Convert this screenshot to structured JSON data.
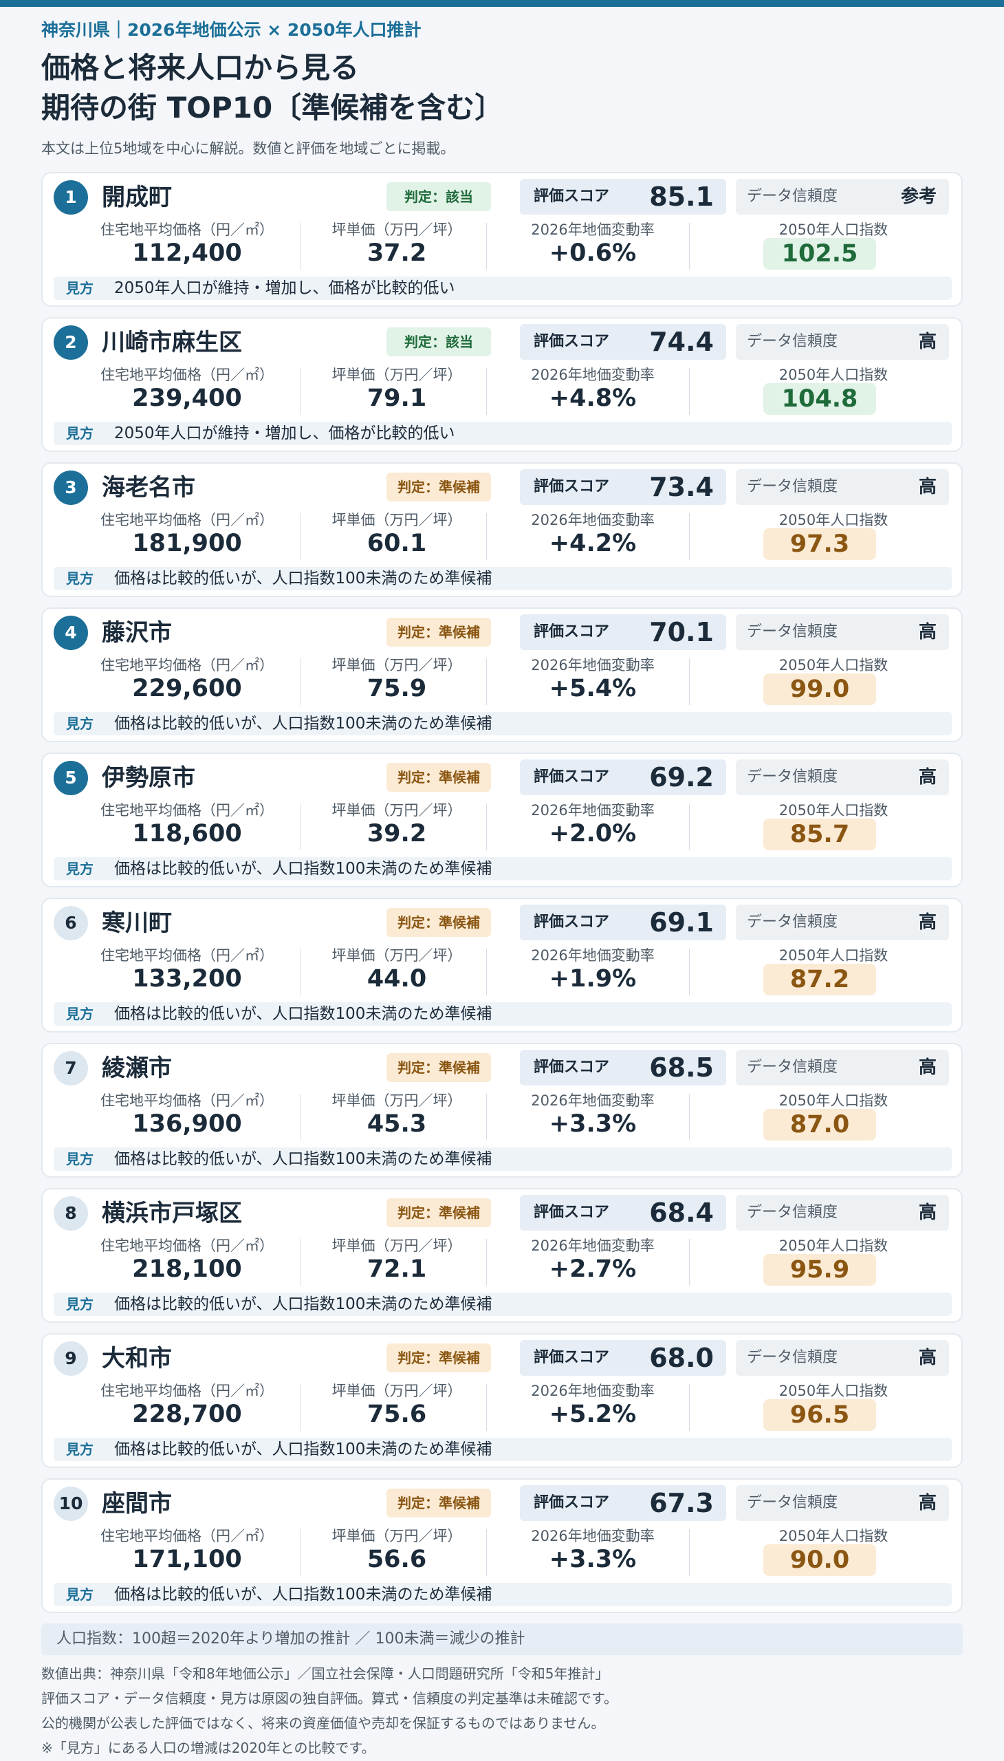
{
  "header": {
    "eyebrow": "神奈川県｜2026年地価公示 × 2050年人口推計",
    "title_line1": "価格と将来人口から見る",
    "title_line2": "期待の街 TOP10〔準候補を含む〕",
    "lede": "本文は上位5地域を中心に解説。数値と評価を地域ごとに掲載。"
  },
  "labels": {
    "score": "評価スコア",
    "trust": "データ信頼度",
    "price": "住宅地平均価格（円／㎡）",
    "tsubo": "坪単価（万円／坪）",
    "change": "2026年地価変動率",
    "pop": "2050年人口指数",
    "view": "見方"
  },
  "colors": {
    "accent": "#1b6f98",
    "match_green": "#1f6b3a",
    "candidate_orange": "#8a5612"
  },
  "cards": [
    {
      "rank": "1",
      "name": "開成町",
      "judge": "判定：該当",
      "judge_kind": "match",
      "score": "85.1",
      "trust": "参考",
      "price": "112,400",
      "tsubo": "37.2",
      "change": "+0.6%",
      "pop": "102.5",
      "view": "2050年人口が維持・増加し、価格が比較的低い"
    },
    {
      "rank": "2",
      "name": "川崎市麻生区",
      "judge": "判定：該当",
      "judge_kind": "match",
      "score": "74.4",
      "trust": "高",
      "price": "239,400",
      "tsubo": "79.1",
      "change": "+4.8%",
      "pop": "104.8",
      "view": "2050年人口が維持・増加し、価格が比較的低い"
    },
    {
      "rank": "3",
      "name": "海老名市",
      "judge": "判定：準候補",
      "judge_kind": "cand",
      "score": "73.4",
      "trust": "高",
      "price": "181,900",
      "tsubo": "60.1",
      "change": "+4.2%",
      "pop": "97.3",
      "view": "価格は比較的低いが、人口指数100未満のため準候補"
    },
    {
      "rank": "4",
      "name": "藤沢市",
      "judge": "判定：準候補",
      "judge_kind": "cand",
      "score": "70.1",
      "trust": "高",
      "price": "229,600",
      "tsubo": "75.9",
      "change": "+5.4%",
      "pop": "99.0",
      "view": "価格は比較的低いが、人口指数100未満のため準候補"
    },
    {
      "rank": "5",
      "name": "伊勢原市",
      "judge": "判定：準候補",
      "judge_kind": "cand",
      "score": "69.2",
      "trust": "高",
      "price": "118,600",
      "tsubo": "39.2",
      "change": "+2.0%",
      "pop": "85.7",
      "view": "価格は比較的低いが、人口指数100未満のため準候補"
    },
    {
      "rank": "6",
      "name": "寒川町",
      "judge": "判定：準候補",
      "judge_kind": "cand",
      "score": "69.1",
      "trust": "高",
      "price": "133,200",
      "tsubo": "44.0",
      "change": "+1.9%",
      "pop": "87.2",
      "view": "価格は比較的低いが、人口指数100未満のため準候補"
    },
    {
      "rank": "7",
      "name": "綾瀬市",
      "judge": "判定：準候補",
      "judge_kind": "cand",
      "score": "68.5",
      "trust": "高",
      "price": "136,900",
      "tsubo": "45.3",
      "change": "+3.3%",
      "pop": "87.0",
      "view": "価格は比較的低いが、人口指数100未満のため準候補"
    },
    {
      "rank": "8",
      "name": "横浜市戸塚区",
      "judge": "判定：準候補",
      "judge_kind": "cand",
      "score": "68.4",
      "trust": "高",
      "price": "218,100",
      "tsubo": "72.1",
      "change": "+2.7%",
      "pop": "95.9",
      "view": "価格は比較的低いが、人口指数100未満のため準候補"
    },
    {
      "rank": "9",
      "name": "大和市",
      "judge": "判定：準候補",
      "judge_kind": "cand",
      "score": "68.0",
      "trust": "高",
      "price": "228,700",
      "tsubo": "75.6",
      "change": "+5.2%",
      "pop": "96.5",
      "view": "価格は比較的低いが、人口指数100未満のため準候補"
    },
    {
      "rank": "10",
      "name": "座間市",
      "judge": "判定：準候補",
      "judge_kind": "cand",
      "score": "67.3",
      "trust": "高",
      "price": "171,100",
      "tsubo": "56.6",
      "change": "+3.3%",
      "pop": "90.0",
      "view": "価格は比較的低いが、人口指数100未満のため準候補"
    }
  ],
  "footer": {
    "legend": "人口指数：100超＝2020年より増加の推計 ／ 100未満＝減少の推計",
    "notes": [
      "数値出典：神奈川県「令和8年地価公示」／国立社会保障・人口問題研究所「令和5年推計」",
      "評価スコア・データ信頼度・見方は原図の独自評価。算式・信頼度の判定基準は未確認です。",
      "公的機関が公表した評価ではなく、将来の資産価値や売却を保証するものではありません。",
      "※「見方」にある人口の増減は2020年との比較です。"
    ]
  }
}
